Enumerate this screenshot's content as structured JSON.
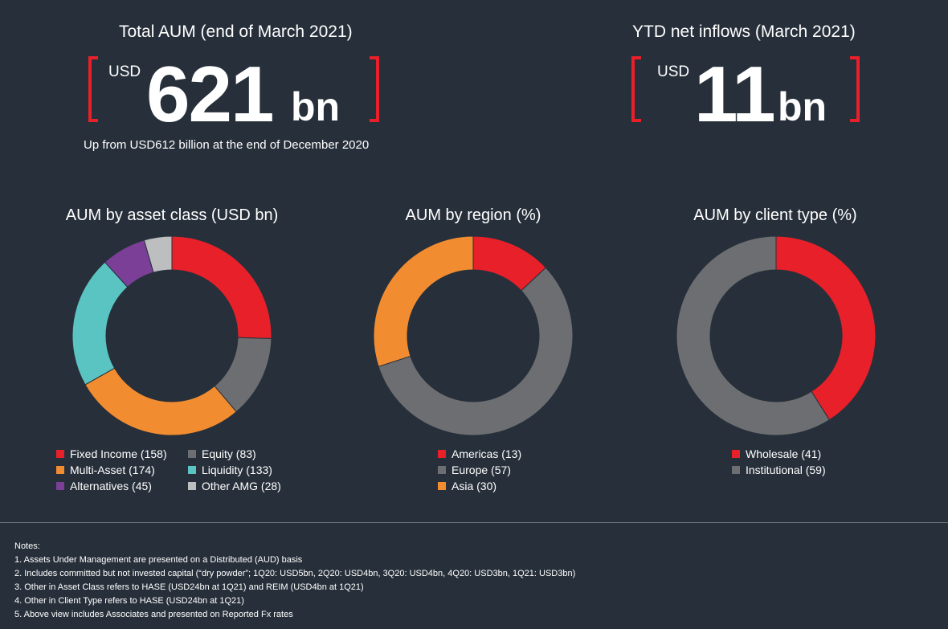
{
  "kpis": {
    "total_aum": {
      "title": "Total AUM (end of March 2021)",
      "currency": "USD",
      "value": "621",
      "unit": "bn",
      "subtitle": "Up from USD612 billion at the end of December 2020"
    },
    "net_inflows": {
      "title": "YTD net inflows (March 2021)",
      "currency": "USD",
      "value": "11",
      "unit": "bn"
    }
  },
  "chart_data": [
    {
      "type": "pie",
      "title": "AUM by asset class (USD bn)",
      "categories": [
        "Fixed Income",
        "Equity",
        "Multi-Asset",
        "Liquidity",
        "Alternatives",
        "Other AMG"
      ],
      "values": [
        158,
        83,
        174,
        133,
        45,
        28
      ],
      "legend_labels": [
        "Fixed Income (158)",
        "Equity (83)",
        "Multi-Asset (174)",
        "Liquidity (133)",
        "Alternatives (45)",
        "Other AMG (28)"
      ],
      "colors": [
        "#e8202a",
        "#6d6e71",
        "#f28c30",
        "#59c4c1",
        "#7b3f98",
        "#bcbec0"
      ],
      "style": "donut",
      "legend_placement": "bottom"
    },
    {
      "type": "pie",
      "title": "AUM by region (%)",
      "categories": [
        "Americas",
        "Europe",
        "Asia"
      ],
      "values": [
        13,
        57,
        30
      ],
      "legend_labels": [
        "Americas (13)",
        "Europe (57)",
        "Asia (30)"
      ],
      "colors": [
        "#e8202a",
        "#6d6e71",
        "#f28c30"
      ],
      "style": "donut",
      "legend_placement": "bottom"
    },
    {
      "type": "pie",
      "title": "AUM by client type (%)",
      "categories": [
        "Wholesale",
        "Institutional"
      ],
      "values": [
        41,
        59
      ],
      "legend_labels": [
        "Wholesale (41)",
        "Institutional (59)"
      ],
      "colors": [
        "#e8202a",
        "#6d6e71"
      ],
      "style": "donut",
      "legend_placement": "bottom"
    }
  ],
  "notes": {
    "heading": "Notes:",
    "items": [
      "1. Assets Under Management are presented on a Distributed (AUD) basis",
      "2. Includes committed but not invested capital (“dry powder”; 1Q20: USD5bn, 2Q20: USD4bn, 3Q20: USD4bn, 4Q20: USD3bn, 1Q21: USD3bn)",
      "3. Other in Asset Class refers to HASE (USD24bn at 1Q21) and REIM (USD4bn at 1Q21)",
      "4. Other in Client Type refers to HASE (USD24bn at 1Q21)",
      "5. Above view includes Associates and presented on Reported Fx rates"
    ]
  }
}
